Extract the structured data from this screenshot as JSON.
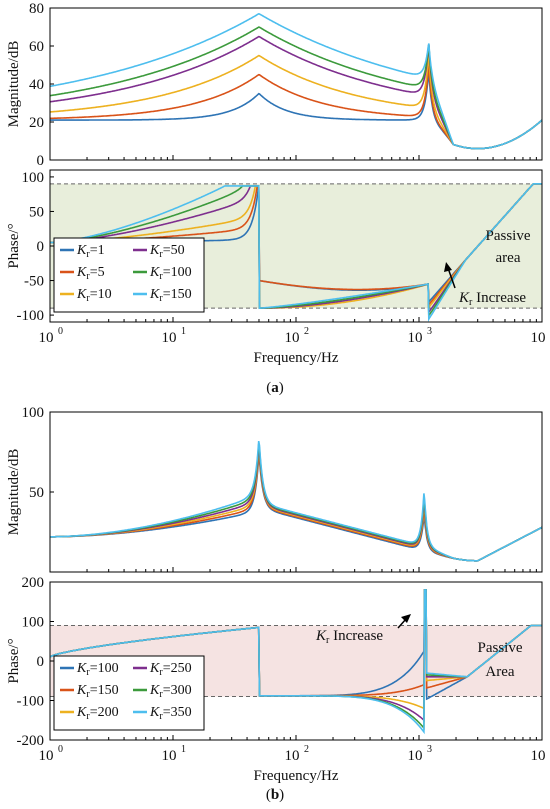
{
  "colors": {
    "s1": "#2e74b5",
    "s2": "#d95319",
    "s3": "#edb120",
    "s4": "#7e2f8e",
    "s5": "#3c9a3c",
    "s6": "#4dbeee",
    "passive_a": "#e8eedb",
    "passive_b": "#f5e3e2",
    "dash": "#666666"
  },
  "chart_data": [
    {
      "panel": "a",
      "subplot": "magnitude",
      "type": "line",
      "xscale": "log",
      "xlim": [
        1,
        10000
      ],
      "ylim": [
        0,
        80
      ],
      "ylabel": "Magnitude/dB",
      "yticks": [
        "0",
        "20",
        "40",
        "60",
        "80"
      ],
      "grid": false,
      "series": [
        {
          "k": "1",
          "peak50": 35,
          "peak1k": 47
        },
        {
          "k": "5",
          "peak50": 45,
          "peak1k": 49
        },
        {
          "k": "10",
          "peak50": 55,
          "peak1k": 50
        },
        {
          "k": "50",
          "peak50": 65,
          "peak1k": 49
        },
        {
          "k": "100",
          "peak50": 70,
          "peak1k": 45
        },
        {
          "k": "150",
          "peak50": 77,
          "peak1k": 40
        }
      ],
      "notes": "All curves start near 21 dB at 1 Hz, resonant peaks at 50 Hz and ~1.2 kHz, common notch ~6 dB near 3 kHz, rising to ~33 dB at 10 kHz"
    },
    {
      "panel": "a",
      "subplot": "phase",
      "type": "line",
      "xscale": "log",
      "xlim": [
        1,
        10000
      ],
      "ylim": [
        -110,
        110
      ],
      "ylabel": "Phase/°",
      "xlabel": "Frequency/Hz",
      "yticks": [
        "100",
        "50",
        "0",
        "-50",
        "-100"
      ],
      "xticks": [
        "0",
        "1",
        "2",
        "3",
        "4"
      ],
      "passive_band": [
        -90,
        90
      ],
      "legend": [
        "=1",
        "=5",
        "=10",
        "=50",
        "=100",
        "=150"
      ],
      "legend_placement": "bottom-left",
      "annotations": {
        "increase": "Increase",
        "passive_line1": "Passive",
        "passive_line2": "area"
      }
    },
    {
      "panel": "b",
      "subplot": "magnitude",
      "type": "line",
      "xscale": "log",
      "xlim": [
        1,
        10000
      ],
      "ylim": [
        0,
        100
      ],
      "ylabel": "Magnitude/dB",
      "yticks": [
        "50",
        "100"
      ],
      "grid": false,
      "series": [
        {
          "k": "100",
          "peak50": 74,
          "peak1k": 36
        },
        {
          "k": "150",
          "peak50": 76,
          "peak1k": 40
        },
        {
          "k": "200",
          "peak50": 78,
          "peak1k": 43
        },
        {
          "k": "250",
          "peak50": 80,
          "peak1k": 46
        },
        {
          "k": "300",
          "peak50": 82,
          "peak1k": 48
        },
        {
          "k": "350",
          "peak50": 84,
          "peak1k": 51
        }
      ],
      "notes": "All curves start near 22 dB at 1 Hz, peaks at 50 Hz and ~1.1 kHz, notch ~7 dB near 3 kHz, rising to ~27 dB at 10 kHz"
    },
    {
      "panel": "b",
      "subplot": "phase",
      "type": "line",
      "xscale": "log",
      "xlim": [
        1,
        10000
      ],
      "ylim": [
        -200,
        200
      ],
      "ylabel": "Phase/°",
      "xlabel": "Frequency/Hz",
      "yticks": [
        "200",
        "100",
        "0",
        "-100",
        "-200"
      ],
      "xticks": [
        "0",
        "1",
        "2",
        "3",
        "4"
      ],
      "passive_band": [
        -90,
        90
      ],
      "legend": [
        "=100",
        "=150",
        "=200",
        "=250",
        "=300",
        "=350"
      ],
      "legend_placement": "bottom-left",
      "annotations": {
        "increase": "Increase",
        "passive_line1": "Passive",
        "passive_line2": "Area"
      }
    }
  ],
  "text": {
    "k_letter": "K",
    "k_sub": "r",
    "tick_base": "10",
    "caption_a": "a",
    "caption_b": "b",
    "paren_open": "(",
    "paren_close": ")"
  }
}
